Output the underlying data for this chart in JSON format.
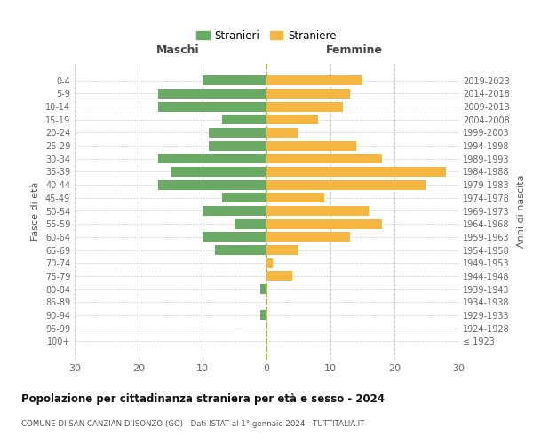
{
  "age_groups": [
    "100+",
    "95-99",
    "90-94",
    "85-89",
    "80-84",
    "75-79",
    "70-74",
    "65-69",
    "60-64",
    "55-59",
    "50-54",
    "45-49",
    "40-44",
    "35-39",
    "30-34",
    "25-29",
    "20-24",
    "15-19",
    "10-14",
    "5-9",
    "0-4"
  ],
  "birth_years": [
    "≤ 1923",
    "1924-1928",
    "1929-1933",
    "1934-1938",
    "1939-1943",
    "1944-1948",
    "1949-1953",
    "1954-1958",
    "1959-1963",
    "1964-1968",
    "1969-1973",
    "1974-1978",
    "1979-1983",
    "1984-1988",
    "1989-1993",
    "1994-1998",
    "1999-2003",
    "2004-2008",
    "2009-2013",
    "2014-2018",
    "2019-2023"
  ],
  "maschi": [
    0,
    0,
    1,
    0,
    1,
    0,
    0,
    8,
    10,
    5,
    10,
    7,
    17,
    15,
    17,
    9,
    9,
    7,
    17,
    17,
    10
  ],
  "femmine": [
    0,
    0,
    0,
    0,
    0,
    4,
    1,
    5,
    13,
    18,
    16,
    9,
    25,
    28,
    18,
    14,
    5,
    8,
    12,
    13,
    15
  ],
  "maschi_color": "#6aaa64",
  "femmine_color": "#f5b642",
  "grid_color": "#cccccc",
  "title": "Popolazione per cittadinanza straniera per età e sesso - 2024",
  "subtitle": "COMUNE DI SAN CANZIAN D’ISONZO (GO) - Dati ISTAT al 1° gennaio 2024 - TUTTITALIA.IT",
  "ylabel_left": "Fasce di età",
  "ylabel_right": "Anni di nascita",
  "header_left": "Maschi",
  "header_right": "Femmine",
  "legend_stranieri": "Stranieri",
  "legend_straniere": "Straniere",
  "xlim": 30
}
